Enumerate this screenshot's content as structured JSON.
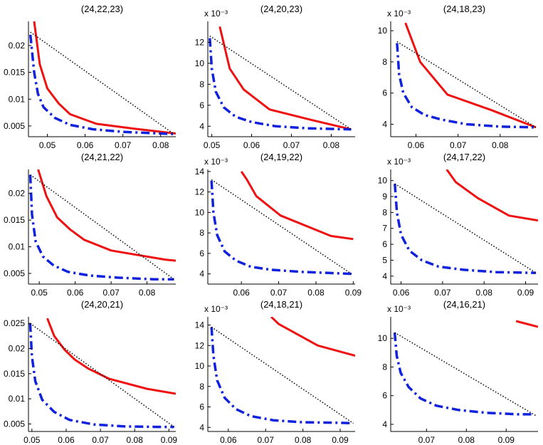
{
  "figure": {
    "layout": "3x3 grid of line plots"
  },
  "colors": {
    "red_curve": "#ee1111",
    "blue_curve": "#1122dd",
    "dotted_line": "#000000",
    "axes": "#000000"
  },
  "chart_data": [
    {
      "title": "(24,22,23)",
      "type": "line",
      "exponent": "",
      "xlim": [
        0.045,
        0.084
      ],
      "ylim": [
        0.003,
        0.0245
      ],
      "xticks": [
        0.05,
        0.06,
        0.07,
        0.08
      ],
      "xticklabels": [
        "0.05",
        "0.06",
        "0.07",
        "0.08"
      ],
      "yticks": [
        0.005,
        0.01,
        0.015,
        0.02
      ],
      "yticklabels": [
        "0.005",
        "0.01",
        "0.015",
        "0.02"
      ],
      "series": [
        {
          "name": "red-solid",
          "x": [
            0.0465,
            0.048,
            0.05,
            0.053,
            0.056,
            0.063,
            0.073,
            0.084
          ],
          "y": [
            0.0245,
            0.0165,
            0.012,
            0.0092,
            0.0072,
            0.0054,
            0.0045,
            0.0036
          ]
        },
        {
          "name": "blue-dashdot",
          "x": [
            0.0455,
            0.0465,
            0.0475,
            0.049,
            0.052,
            0.056,
            0.062,
            0.07,
            0.08,
            0.0835
          ],
          "y": [
            0.022,
            0.015,
            0.011,
            0.0085,
            0.0065,
            0.0052,
            0.0044,
            0.0039,
            0.0036,
            0.0035
          ]
        },
        {
          "name": "black-dotted",
          "x": [
            0.0455,
            0.0835
          ],
          "y": [
            0.0225,
            0.0035
          ]
        }
      ]
    },
    {
      "title": "(24,20,23)",
      "type": "line",
      "exponent": "x 10⁻³",
      "xlim": [
        0.049,
        0.086
      ],
      "ylim": [
        3.0,
        14.0
      ],
      "xticks": [
        0.05,
        0.06,
        0.07,
        0.08
      ],
      "xticklabels": [
        "0.05",
        "0.06",
        "0.07",
        "0.08"
      ],
      "yticks": [
        4,
        6,
        8,
        10,
        12
      ],
      "yticklabels": [
        "4",
        "6",
        "8",
        "10",
        "12"
      ],
      "series": [
        {
          "name": "red-solid",
          "x": [
            0.052,
            0.0545,
            0.058,
            0.0645,
            0.075,
            0.085
          ],
          "y": [
            13.5,
            9.5,
            7.5,
            5.6,
            4.6,
            3.7
          ]
        },
        {
          "name": "blue-dashdot",
          "x": [
            0.0495,
            0.05,
            0.051,
            0.053,
            0.056,
            0.06,
            0.066,
            0.074,
            0.085
          ],
          "y": [
            12.4,
            9.5,
            7.3,
            5.8,
            4.9,
            4.4,
            4.0,
            3.8,
            3.7
          ]
        },
        {
          "name": "black-dotted",
          "x": [
            0.0495,
            0.085
          ],
          "y": [
            12.6,
            3.7
          ]
        }
      ]
    },
    {
      "title": "(24,18,23)",
      "type": "line",
      "exponent": "x 10⁻³",
      "xlim": [
        0.054,
        0.089
      ],
      "ylim": [
        3.2,
        10.6
      ],
      "xticks": [
        0.06,
        0.07,
        0.08
      ],
      "xticklabels": [
        "0.06",
        "0.07",
        "0.08"
      ],
      "yticks": [
        4,
        6,
        8,
        10
      ],
      "yticklabels": [
        "4",
        "6",
        "8",
        "10"
      ],
      "series": [
        {
          "name": "red-solid",
          "x": [
            0.0575,
            0.061,
            0.0675,
            0.078,
            0.0885
          ],
          "y": [
            10.5,
            8.0,
            5.9,
            4.9,
            3.8
          ]
        },
        {
          "name": "blue-dashdot",
          "x": [
            0.0555,
            0.056,
            0.057,
            0.059,
            0.062,
            0.066,
            0.072,
            0.08,
            0.0885
          ],
          "y": [
            9.2,
            7.2,
            6.0,
            5.1,
            4.6,
            4.3,
            4.0,
            3.85,
            3.8
          ]
        },
        {
          "name": "black-dotted",
          "x": [
            0.0555,
            0.0885
          ],
          "y": [
            9.3,
            3.8
          ]
        }
      ]
    },
    {
      "title": "(24,21,22)",
      "type": "line",
      "exponent": "",
      "xlim": [
        0.047,
        0.088
      ],
      "ylim": [
        0.003,
        0.0245
      ],
      "xticks": [
        0.05,
        0.06,
        0.07,
        0.08
      ],
      "xticklabels": [
        "0.05",
        "0.06",
        "0.07",
        "0.08"
      ],
      "yticks": [
        0.005,
        0.01,
        0.015,
        0.02
      ],
      "yticklabels": [
        "0.005",
        "0.01",
        "0.015",
        "0.02"
      ],
      "series": [
        {
          "name": "red-solid",
          "x": [
            0.0497,
            0.052,
            0.055,
            0.0585,
            0.0625,
            0.07,
            0.085,
            0.088
          ],
          "y": [
            0.0245,
            0.0195,
            0.0155,
            0.0133,
            0.0113,
            0.0093,
            0.0076,
            0.0074
          ]
        },
        {
          "name": "blue-dashdot",
          "x": [
            0.0475,
            0.048,
            0.049,
            0.051,
            0.054,
            0.058,
            0.064,
            0.072,
            0.082,
            0.0875
          ],
          "y": [
            0.0235,
            0.016,
            0.011,
            0.0082,
            0.0065,
            0.0053,
            0.0046,
            0.0042,
            0.0039,
            0.0039
          ]
        },
        {
          "name": "black-dotted",
          "x": [
            0.0475,
            0.0875
          ],
          "y": [
            0.0235,
            0.0039
          ]
        }
      ]
    },
    {
      "title": "(24,19,22)",
      "type": "line",
      "exponent": "x 10⁻³",
      "xlim": [
        0.051,
        0.0905
      ],
      "ylim": [
        3.0,
        14.2
      ],
      "xticks": [
        0.06,
        0.07,
        0.08,
        0.09
      ],
      "xticklabels": [
        "0.06",
        "0.07",
        "0.08",
        "0.09"
      ],
      "yticks": [
        4,
        6,
        8,
        10,
        12,
        14
      ],
      "yticklabels": [
        "4",
        "6",
        "8",
        "10",
        "12",
        "14"
      ],
      "series": [
        {
          "name": "red-solid",
          "x": [
            0.06,
            0.0615,
            0.064,
            0.0705,
            0.084,
            0.09
          ],
          "y": [
            14.0,
            13.2,
            11.6,
            9.7,
            7.7,
            7.4
          ]
        },
        {
          "name": "blue-dashdot",
          "x": [
            0.052,
            0.0525,
            0.0535,
            0.0555,
            0.0585,
            0.0625,
            0.068,
            0.076,
            0.086,
            0.0895
          ],
          "y": [
            13.1,
            10.0,
            7.8,
            6.2,
            5.3,
            4.7,
            4.4,
            4.2,
            4.05,
            4.0
          ]
        },
        {
          "name": "black-dotted",
          "x": [
            0.052,
            0.0895
          ],
          "y": [
            13.2,
            4.0
          ]
        }
      ]
    },
    {
      "title": "(24,17,22)",
      "type": "line",
      "exponent": "x 10⁻³",
      "xlim": [
        0.0575,
        0.093
      ],
      "ylim": [
        3.5,
        10.7
      ],
      "xticks": [
        0.06,
        0.07,
        0.08,
        0.09
      ],
      "xticklabels": [
        "0.06",
        "0.07",
        "0.08",
        "0.09"
      ],
      "yticks": [
        4,
        5,
        6,
        7,
        8,
        9,
        10
      ],
      "yticklabels": [
        "4",
        "5",
        "6",
        "7",
        "8",
        "9",
        "10"
      ],
      "series": [
        {
          "name": "red-solid",
          "x": [
            0.071,
            0.0732,
            0.0785,
            0.086,
            0.093
          ],
          "y": [
            10.7,
            9.9,
            8.9,
            7.8,
            7.5
          ]
        },
        {
          "name": "blue-dashdot",
          "x": [
            0.0585,
            0.059,
            0.06,
            0.062,
            0.065,
            0.069,
            0.075,
            0.083,
            0.0925
          ],
          "y": [
            9.8,
            8.0,
            6.6,
            5.6,
            5.0,
            4.6,
            4.4,
            4.25,
            4.2
          ]
        },
        {
          "name": "black-dotted",
          "x": [
            0.0585,
            0.0925
          ],
          "y": [
            9.8,
            4.2
          ]
        }
      ]
    },
    {
      "title": "(24,20,21)",
      "type": "line",
      "exponent": "",
      "xlim": [
        0.049,
        0.092
      ],
      "ylim": [
        0.0035,
        0.0263
      ],
      "xticks": [
        0.05,
        0.06,
        0.07,
        0.08,
        0.09
      ],
      "xticklabels": [
        "0.05",
        "0.06",
        "0.07",
        "0.08",
        "0.09"
      ],
      "yticks": [
        0.005,
        0.01,
        0.015,
        0.02,
        0.025
      ],
      "yticklabels": [
        "0.005",
        "0.01",
        "0.015",
        "0.02",
        "0.025"
      ],
      "series": [
        {
          "name": "red-solid",
          "x": [
            0.0545,
            0.0565,
            0.0595,
            0.0625,
            0.0665,
            0.0725,
            0.0835,
            0.092
          ],
          "y": [
            0.026,
            0.0225,
            0.0198,
            0.0178,
            0.016,
            0.014,
            0.012,
            0.011
          ]
        },
        {
          "name": "blue-dashdot",
          "x": [
            0.0495,
            0.05,
            0.051,
            0.053,
            0.0565,
            0.061,
            0.068,
            0.077,
            0.087,
            0.0915
          ],
          "y": [
            0.025,
            0.0185,
            0.0135,
            0.0098,
            0.0074,
            0.0058,
            0.0049,
            0.0045,
            0.0044,
            0.0044
          ]
        },
        {
          "name": "black-dotted",
          "x": [
            0.0495,
            0.0915
          ],
          "y": [
            0.025,
            0.0044
          ]
        }
      ]
    },
    {
      "title": "(24,18,21)",
      "type": "line",
      "exponent": "x 10⁻³",
      "xlim": [
        0.0545,
        0.094
      ],
      "ylim": [
        3.6,
        14.8
      ],
      "xticks": [
        0.06,
        0.07,
        0.08,
        0.09
      ],
      "xticklabels": [
        "0.06",
        "0.07",
        "0.08",
        "0.09"
      ],
      "yticks": [
        4,
        6,
        8,
        10,
        12,
        14
      ],
      "yticklabels": [
        "4",
        "6",
        "8",
        "10",
        "12",
        "14"
      ],
      "series": [
        {
          "name": "red-solid",
          "x": [
            0.0715,
            0.0735,
            0.084,
            0.094
          ],
          "y": [
            14.8,
            14.1,
            12.0,
            11.0
          ]
        },
        {
          "name": "blue-dashdot",
          "x": [
            0.0555,
            0.056,
            0.057,
            0.059,
            0.062,
            0.066,
            0.072,
            0.08,
            0.09,
            0.0935
          ],
          "y": [
            13.8,
            11.0,
            8.6,
            6.9,
            5.8,
            5.1,
            4.7,
            4.5,
            4.45,
            4.4
          ]
        },
        {
          "name": "black-dotted",
          "x": [
            0.0555,
            0.0935
          ],
          "y": [
            13.8,
            4.4
          ]
        }
      ]
    },
    {
      "title": "(24,16,21)",
      "type": "line",
      "exponent": "x 10⁻³",
      "xlim": [
        0.061,
        0.098
      ],
      "ylim": [
        3.5,
        11.5
      ],
      "xticks": [
        0.07,
        0.08,
        0.09
      ],
      "xticklabels": [
        "0.07",
        "0.08",
        "0.09"
      ],
      "yticks": [
        4,
        6,
        8,
        10
      ],
      "yticklabels": [
        "4",
        "6",
        "8",
        "10"
      ],
      "series": [
        {
          "name": "red-solid",
          "x": [
            0.0925,
            0.098
          ],
          "y": [
            11.2,
            10.8
          ]
        },
        {
          "name": "blue-dashdot",
          "x": [
            0.062,
            0.0625,
            0.0635,
            0.0655,
            0.0685,
            0.0725,
            0.078,
            0.085,
            0.093,
            0.097
          ],
          "y": [
            10.4,
            8.8,
            7.6,
            6.6,
            5.8,
            5.3,
            5.0,
            4.8,
            4.7,
            4.7
          ]
        },
        {
          "name": "black-dotted",
          "x": [
            0.062,
            0.0975
          ],
          "y": [
            10.4,
            4.6
          ]
        }
      ]
    }
  ]
}
